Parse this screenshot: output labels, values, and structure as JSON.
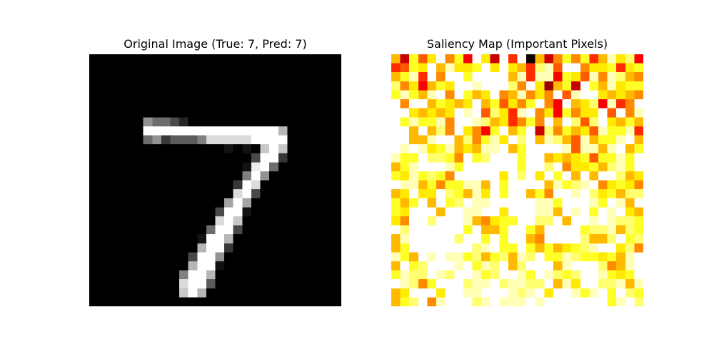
{
  "chart_data": [
    {
      "type": "heatmap",
      "title": "Original Image (True: 7, Pred: 7)",
      "colormap": "gray",
      "grid": false,
      "rows": [
        "............................",
        "............................",
        "............................",
        "............................",
        "............................",
        "............................",
        "............................",
        "......86642.................",
        "......EEEEEEEEEEEEEEEA......",
        "......6835557CCCCCEEEE......",
        "...............1.1.BEB......",
        "..................4EE3......",
        ".................1DE6.......",
        ".................7E8........",
        "................3EC.........",
        "................CE4.........",
        "...............9E9..........",
        "..............4EE1..........",
        "..............CEB...........",
        ".............6EE4...........",
        "............1EEA............",
        "............AEE3............",
        "...........4EE8.............",
        "...........AEE1.............",
        "..........7EEA..............",
        "..........CEE5..............",
        "..........BEA...............",
        "............................"
      ]
    },
    {
      "type": "heatmap",
      "title": "Saliency Map (Important Pixels)",
      "colormap": "hot",
      "grid": false,
      "rows": [
        "94B7AH8B5FA4G6F0948B8B69DAC5",
        "67BAF9DAABHAHA96CD7KK8AAB6AB",
        "9BD6E8FLBKMEJ9D6DD5BA7D8DC98",
        "C8A59BAEEDIOLC8FA39B4FB9DABB",
        "BDB9DE8EB9AI89D8A8F7DLGA9A98",
        "F8GJ9BA9AF9B7A8BE85F9AC5D68G",
        "GLA9A9AFDG7CA6DE8A5B8AAF7G8D",
        "HBDBBD8GHDC9A68B8E9EC7CFA9B9",
        "JJ9E9C8FA85BE9BE4C8B9A7DBBD6",
        "FJ99DFG9C8BDAFCE9DC97D9BBDK9",
        "FDKDABD9A9DDG9BLKHED7DD9DE9B",
        "DBBFCCB8FBCHJEBMG9A9AB7BBDBE",
        "9BDHFEDBEKIJHEBLHCF8AAB9CDBE",
        "BADBCB8FJKLJAHCLAGBL9F9FFC9A",
        "FDD9B8BBDD9EBFJJE9DBCDE8ABA8",
        "9AFAAECB9DAEBLJ9B8GFDGCAB9CC",
        "B9BF9EBCEDDEEFMHDDBGIGDBFD9E",
        "BAEEF9EGDDEEAHLHDD9FDEBFDEA9",
        "A8EFCFFGD98ABBIHCCG9FFDGDCCB",
        "ECKHHJFEBF99BHGB9EIKFBCCD9CB",
        "9DGGLLKCFEBEBFE98EMKEC99CGBC",
        "9BKFFGHFECDEBBFB9B9ABCDFEAC8",
        "DB9FDEDDBC9BC9DCEBBDCBBAB9DF",
        "9JBCEFGDFBDCE9CFEE9DEFEC89DF",
        "BDCCEDCEEDBCEEDBFDCBCFGDBABE",
        "EDC8BHEECDDLCDDCCE9DAMECCD9D",
        "9AKLFAEEDDFLFDCDEAEEDBDFBECB",
        "9BCF8DEGFCDHDDDFDFEFEEEEBDEC"
      ]
    }
  ]
}
